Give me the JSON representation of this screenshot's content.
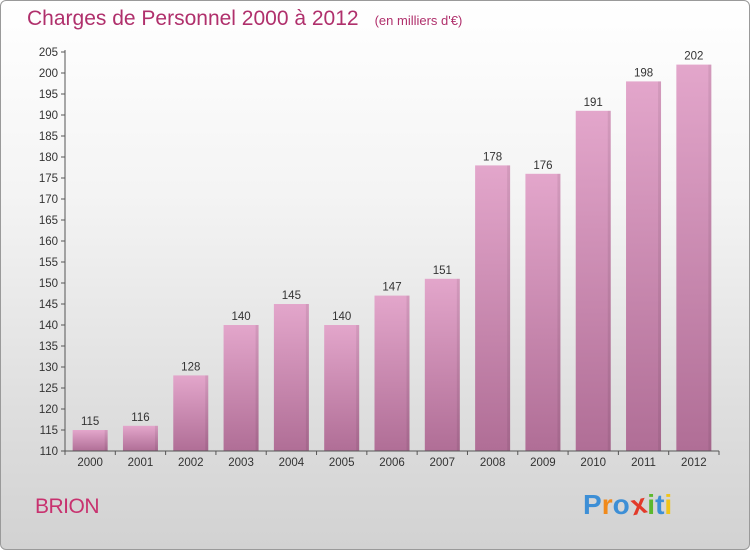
{
  "header": {
    "title": "Charges de Personnel 2000 à 2012",
    "subtitle": "(en milliers d'€)"
  },
  "footer": {
    "commune": "BRION",
    "brand": "Proxiti"
  },
  "colors": {
    "title": "#b0306c",
    "bar_top": "#e3a6cb",
    "bar_bottom": "#b06e96",
    "axis": "#555555",
    "brand_letters": [
      "#3d8fd6",
      "#f08a1c",
      "#3d8fd6",
      "#e23a2a",
      "#5cb82e",
      "#3d8fd6",
      "#f0c419"
    ]
  },
  "chart_data": {
    "type": "bar",
    "categories": [
      "2000",
      "2001",
      "2002",
      "2003",
      "2004",
      "2005",
      "2006",
      "2007",
      "2008",
      "2009",
      "2010",
      "2011",
      "2012"
    ],
    "values": [
      115,
      116,
      128,
      140,
      145,
      140,
      147,
      151,
      178,
      176,
      191,
      198,
      202
    ],
    "ylim": [
      110,
      205
    ],
    "yticks": [
      110,
      115,
      120,
      125,
      130,
      135,
      140,
      145,
      150,
      155,
      160,
      165,
      170,
      175,
      180,
      185,
      190,
      195,
      200,
      205
    ],
    "title": "Charges de Personnel 2000 à 2012",
    "subtitle": "(en milliers d'€)",
    "xlabel": "",
    "ylabel": "",
    "grid": false,
    "data_labels": true
  }
}
